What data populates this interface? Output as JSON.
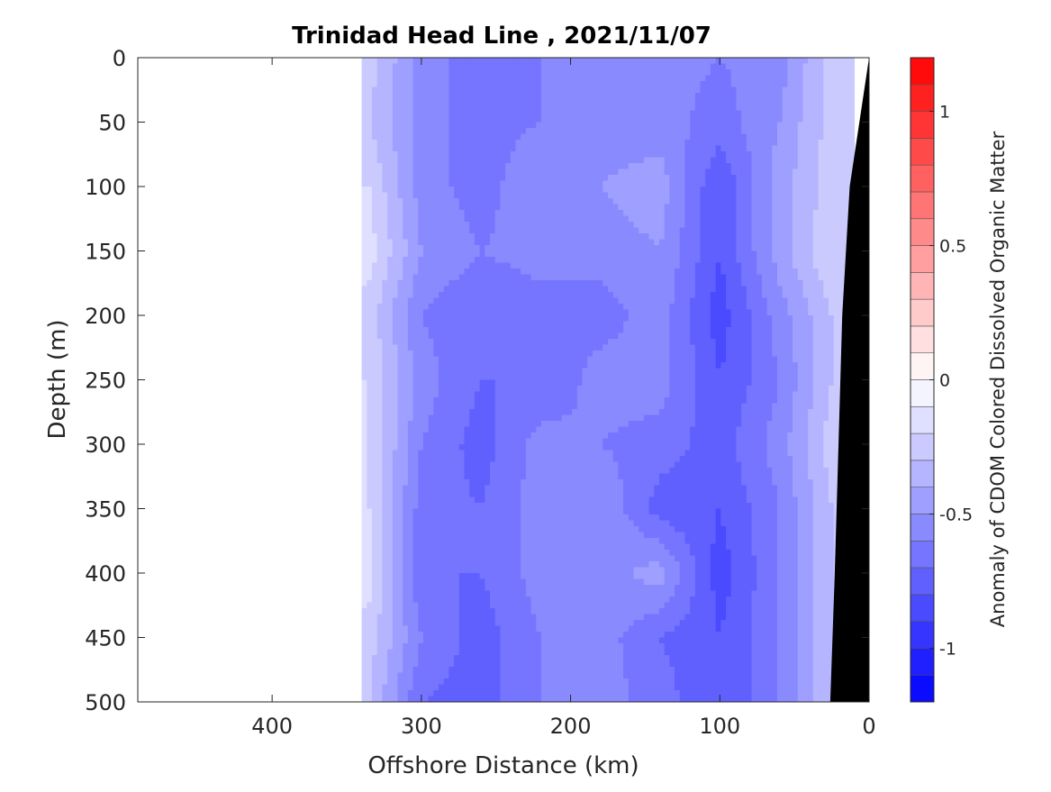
{
  "chart_data": {
    "type": "heatmap",
    "title": "Trinidad Head Line , 2021/11/07",
    "xlabel": "Offshore Distance (km)",
    "ylabel": "Depth (m)",
    "colorbar_label": "Anomaly of CDOM Colored Dissolved Organic Matter",
    "xlim": [
      490,
      0
    ],
    "ylim": [
      500,
      0
    ],
    "x_ticks": [
      400,
      300,
      200,
      100,
      0
    ],
    "x_tick_labels": [
      "400",
      "300",
      "200",
      "100",
      "0"
    ],
    "y_ticks": [
      0,
      50,
      100,
      150,
      200,
      250,
      300,
      350,
      400,
      450,
      500
    ],
    "y_tick_labels": [
      "0",
      "50",
      "100",
      "150",
      "200",
      "250",
      "300",
      "350",
      "400",
      "450",
      "500"
    ],
    "clim": [
      -1.2,
      1.2
    ],
    "colorbar_ticks": [
      1,
      0.5,
      0,
      -0.5,
      -1
    ],
    "colorbar_tick_labels": [
      "1",
      "0.5",
      "0",
      "-0.5",
      "-1"
    ],
    "colormap": {
      "negative": "#0000ff",
      "zero": "#ffffff",
      "positive": "#ff0000"
    },
    "data_x_range": [
      340,
      10
    ],
    "bathymetry_color": "#000000",
    "bathymetry": [
      [
        0,
        0
      ],
      [
        13,
        100
      ],
      [
        18,
        200
      ],
      [
        20,
        280
      ],
      [
        23,
        400
      ],
      [
        26,
        500
      ]
    ],
    "depths": [
      0,
      50,
      100,
      150,
      200,
      250,
      300,
      350,
      400,
      450,
      500
    ],
    "distances": [
      335,
      300,
      260,
      220,
      180,
      140,
      100,
      60,
      25
    ],
    "values": [
      [
        -0.25,
        -0.55,
        -0.65,
        -0.6,
        -0.6,
        -0.55,
        -0.6,
        -0.55,
        -0.25
      ],
      [
        -0.3,
        -0.55,
        -0.65,
        -0.6,
        -0.55,
        -0.55,
        -0.65,
        -0.5,
        -0.25
      ],
      [
        -0.2,
        -0.55,
        -0.65,
        -0.5,
        -0.5,
        -0.45,
        -0.8,
        -0.45,
        -0.25
      ],
      [
        -0.15,
        -0.5,
        -0.6,
        -0.55,
        -0.55,
        -0.5,
        -0.8,
        -0.45,
        -0.2
      ],
      [
        -0.25,
        -0.6,
        -0.7,
        -0.65,
        -0.65,
        -0.55,
        -0.85,
        -0.55,
        -0.3
      ],
      [
        -0.2,
        -0.55,
        -0.7,
        -0.7,
        -0.55,
        -0.55,
        -0.8,
        -0.6,
        -0.3
      ],
      [
        -0.2,
        -0.6,
        -0.75,
        -0.55,
        -0.6,
        -0.65,
        -0.75,
        -0.55,
        -0.25
      ],
      [
        -0.2,
        -0.65,
        -0.7,
        -0.55,
        -0.5,
        -0.75,
        -0.8,
        -0.6,
        -0.3
      ],
      [
        -0.15,
        -0.7,
        -0.7,
        -0.55,
        -0.55,
        -0.45,
        -0.85,
        -0.6,
        -0.3
      ],
      [
        -0.25,
        -0.6,
        -0.75,
        -0.6,
        -0.55,
        -0.7,
        -0.8,
        -0.6,
        -0.3
      ],
      [
        -0.3,
        -0.7,
        -0.75,
        -0.6,
        -0.55,
        -0.65,
        -0.8,
        -0.6,
        -0.3
      ]
    ]
  }
}
